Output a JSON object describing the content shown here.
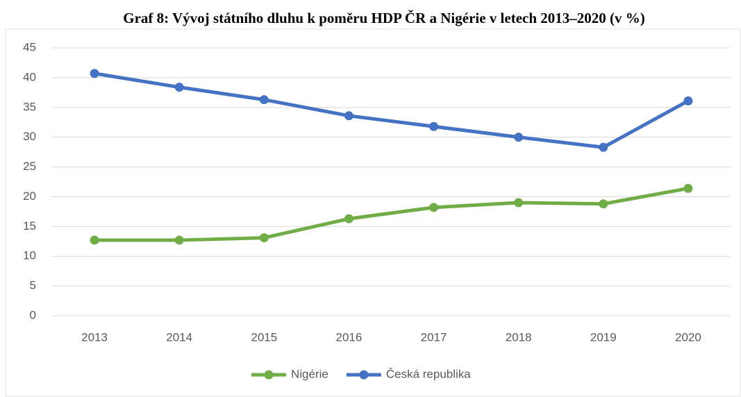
{
  "chart_data": {
    "type": "line",
    "title": "Graf 8: Vývoj státního dluhu k poměru HDP ČR a Nigérie v letech 2013–2020 (v %)",
    "categories": [
      "2013",
      "2014",
      "2015",
      "2016",
      "2017",
      "2018",
      "2019",
      "2020"
    ],
    "series": [
      {
        "name": "Nigérie",
        "color": "#70ad47",
        "values": [
          12.7,
          12.7,
          13.1,
          16.3,
          18.2,
          19.0,
          18.8,
          21.4
        ]
      },
      {
        "name": "Česká republika",
        "color": "#4472c4",
        "values": [
          40.7,
          38.4,
          36.3,
          33.6,
          31.8,
          30.0,
          28.3,
          36.1
        ]
      }
    ],
    "ylim": [
      0,
      45
    ],
    "yticks": [
      0,
      5,
      10,
      15,
      20,
      25,
      30,
      35,
      40,
      45
    ],
    "grid": true,
    "legend": "bottom"
  }
}
